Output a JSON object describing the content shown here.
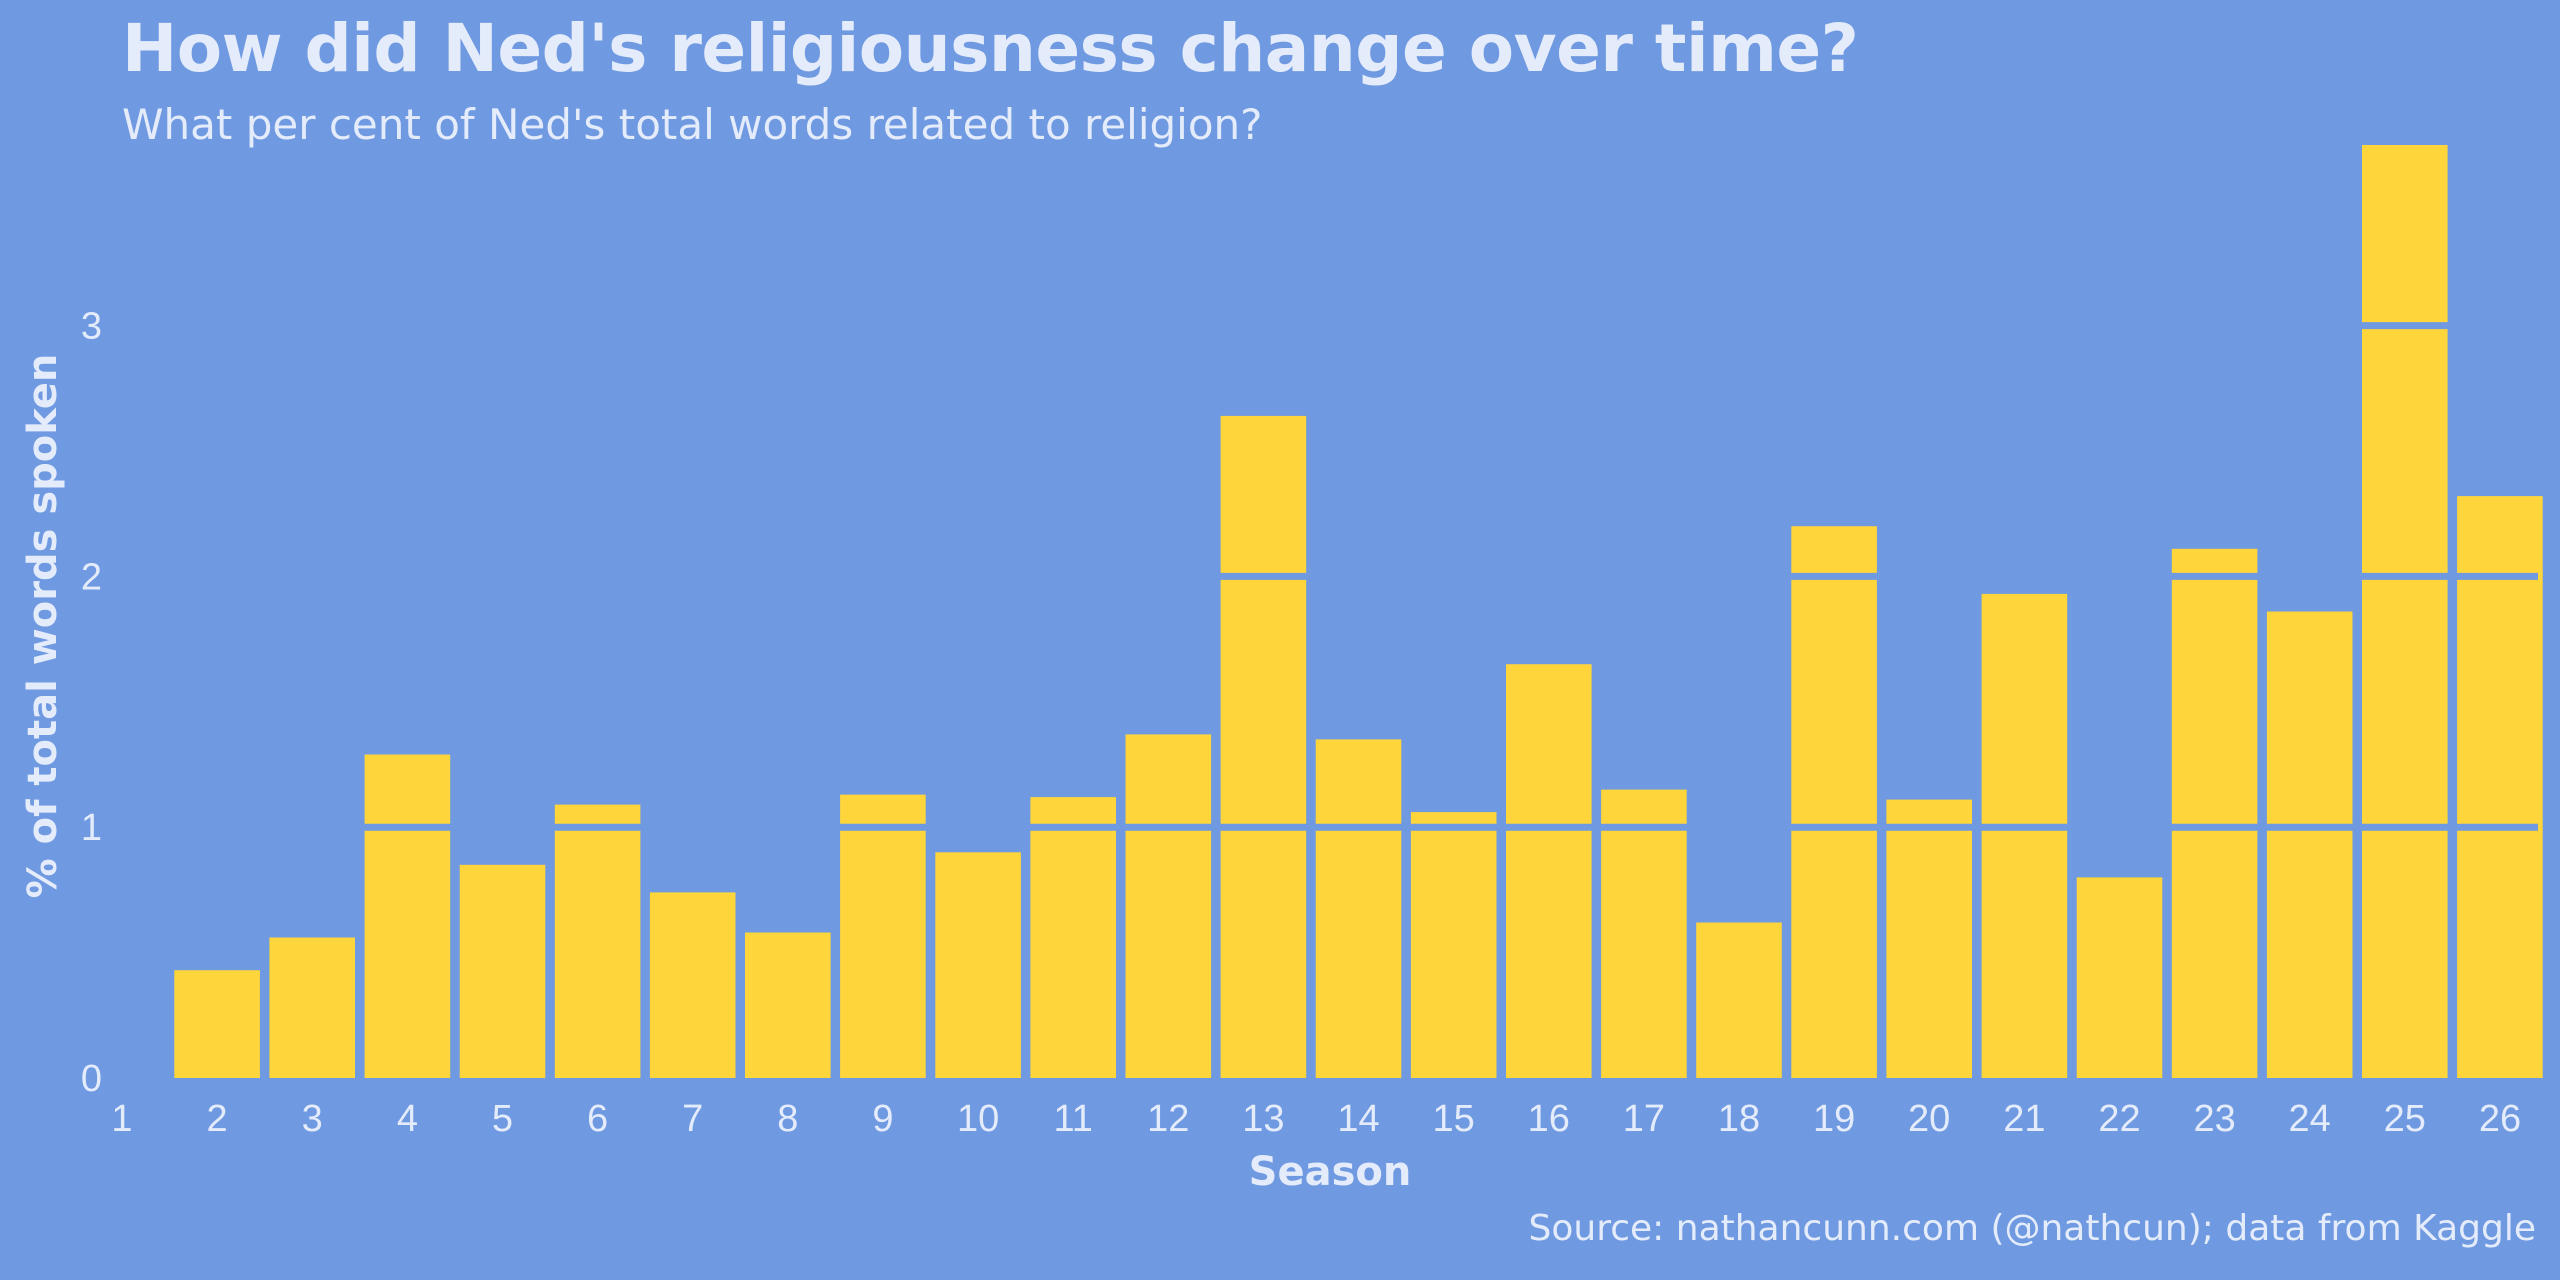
{
  "title": "How did Ned's religiousness change over time?",
  "subtitle": "What per cent of Ned's total words related to religion?",
  "source": "Source: nathancunn.com (@nathcun); data from Kaggle",
  "colors": {
    "background": "#6f99e0",
    "bar": "#fed53b",
    "text": "#e4ecfb"
  },
  "chart_data": {
    "type": "bar",
    "title": "How did Ned's religiousness change over time?",
    "subtitle": "What per cent of Ned's total words related to religion?",
    "xlabel": "Season",
    "ylabel": "% of total words spoken",
    "x_ticks": [
      "1",
      "2",
      "3",
      "4",
      "5",
      "6",
      "7",
      "8",
      "9",
      "10",
      "11",
      "12",
      "13",
      "14",
      "15",
      "16",
      "17",
      "18",
      "19",
      "20",
      "21",
      "22",
      "23",
      "24",
      "25",
      "26"
    ],
    "y_ticks": [
      "0",
      "1",
      "2",
      "3"
    ],
    "xlim": [
      1,
      26.4
    ],
    "ylim": [
      0,
      3.7
    ],
    "grid": true,
    "gridline_values": [
      1,
      2,
      3
    ],
    "categories": [
      2,
      3,
      4,
      5,
      6,
      7,
      8,
      9,
      10,
      11,
      12,
      13,
      14,
      15,
      16,
      17,
      18,
      19,
      20,
      21,
      22,
      23,
      24,
      25,
      26
    ],
    "values": [
      0.43,
      0.56,
      1.29,
      0.85,
      1.09,
      0.74,
      0.58,
      1.13,
      0.9,
      1.12,
      1.37,
      2.64,
      1.35,
      1.06,
      1.65,
      1.15,
      0.62,
      2.2,
      1.11,
      1.93,
      0.8,
      2.11,
      1.86,
      3.72,
      2.32
    ]
  }
}
